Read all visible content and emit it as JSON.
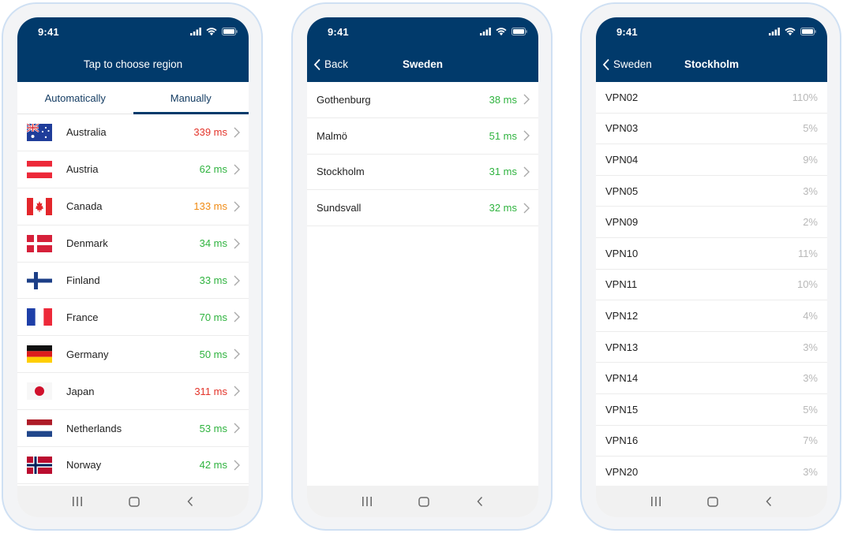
{
  "status_time": "9:41",
  "colors": {
    "header": "#013a6b",
    "good": "#2fb33f",
    "warn": "#f08a12",
    "bad": "#e3342a",
    "load": "#b8b8b8"
  },
  "screen1": {
    "title": "Tap to choose region",
    "tabs": [
      {
        "label": "Automatically",
        "active": false
      },
      {
        "label": "Manually",
        "active": true
      }
    ],
    "countries": [
      {
        "name": "Australia",
        "latency": "339 ms",
        "status": "bad",
        "flag": "australia-flag-icon"
      },
      {
        "name": "Austria",
        "latency": "62 ms",
        "status": "good",
        "flag": "austria-flag-icon"
      },
      {
        "name": "Canada",
        "latency": "133 ms",
        "status": "warn",
        "flag": "canada-flag-icon"
      },
      {
        "name": "Denmark",
        "latency": "34 ms",
        "status": "good",
        "flag": "denmark-flag-icon"
      },
      {
        "name": "Finland",
        "latency": "33 ms",
        "status": "good",
        "flag": "finland-flag-icon"
      },
      {
        "name": "France",
        "latency": "70 ms",
        "status": "good",
        "flag": "france-flag-icon"
      },
      {
        "name": "Germany",
        "latency": "50 ms",
        "status": "good",
        "flag": "germany-flag-icon"
      },
      {
        "name": "Japan",
        "latency": "311 ms",
        "status": "bad",
        "flag": "japan-flag-icon"
      },
      {
        "name": "Netherlands",
        "latency": "53 ms",
        "status": "good",
        "flag": "netherlands-flag-icon"
      },
      {
        "name": "Norway",
        "latency": "42 ms",
        "status": "good",
        "flag": "norway-flag-icon"
      }
    ]
  },
  "screen2": {
    "back_label": "Back",
    "title": "Sweden",
    "cities": [
      {
        "name": "Gothenburg",
        "latency": "38 ms"
      },
      {
        "name": "Malmö",
        "latency": "51 ms"
      },
      {
        "name": "Stockholm",
        "latency": "31 ms"
      },
      {
        "name": "Sundsvall",
        "latency": "32 ms"
      }
    ]
  },
  "screen3": {
    "back_label": "Sweden",
    "title": "Stockholm",
    "servers": [
      {
        "name": "VPN02",
        "load": "110%"
      },
      {
        "name": "VPN03",
        "load": "5%"
      },
      {
        "name": "VPN04",
        "load": "9%"
      },
      {
        "name": "VPN05",
        "load": "3%"
      },
      {
        "name": "VPN09",
        "load": "2%"
      },
      {
        "name": "VPN10",
        "load": "11%"
      },
      {
        "name": "VPN11",
        "load": "10%"
      },
      {
        "name": "VPN12",
        "load": "4%"
      },
      {
        "name": "VPN13",
        "load": "3%"
      },
      {
        "name": "VPN14",
        "load": "3%"
      },
      {
        "name": "VPN15",
        "load": "5%"
      },
      {
        "name": "VPN16",
        "load": "7%"
      },
      {
        "name": "VPN20",
        "load": "3%"
      }
    ]
  },
  "bottom_nav": {
    "recents": "recents-icon",
    "home": "home-icon",
    "back": "back-arrow-icon"
  }
}
